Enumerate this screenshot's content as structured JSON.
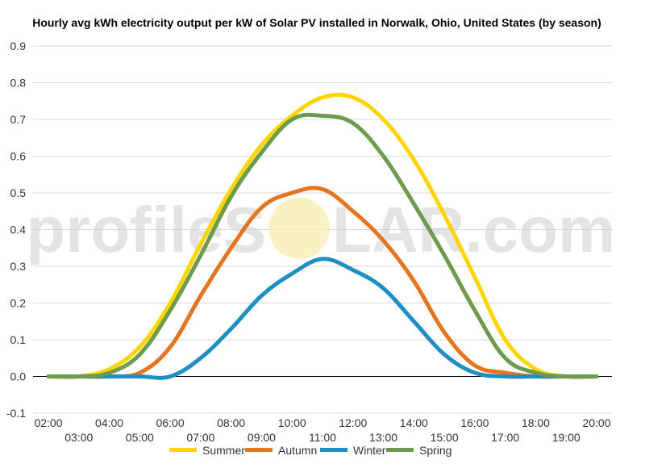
{
  "watermark": {
    "text_left": "profileS",
    "text_right": "LAR.com"
  },
  "colors": {
    "summer": "#FFD500",
    "autumn": "#E5751F",
    "winter": "#1F8FC3",
    "spring": "#6E9A4E",
    "grid": "#d9d9d9",
    "zero_line": "#000000",
    "watermark_text": "#cfcfcf",
    "watermark_sun": "#f7ecb0"
  },
  "chart_data": {
    "type": "line",
    "title": "Hourly avg kWh electricity output per kW of Solar PV installed in Norwalk, Ohio, United States (by season)",
    "xlabel": "",
    "ylabel": "",
    "ylim": [
      -0.1,
      0.9
    ],
    "yticks": [
      "-0.1",
      "0.0",
      "0.1",
      "0.2",
      "0.3",
      "0.4",
      "0.5",
      "0.6",
      "0.7",
      "0.8",
      "0.9"
    ],
    "grid": true,
    "legend_position": "bottom",
    "x": [
      "02:00",
      "03:00",
      "04:00",
      "05:00",
      "06:00",
      "07:00",
      "08:00",
      "09:00",
      "10:00",
      "11:00",
      "12:00",
      "13:00",
      "14:00",
      "15:00",
      "16:00",
      "17:00",
      "18:00",
      "19:00",
      "20:00"
    ],
    "series": [
      {
        "name": "Summer",
        "color": "#FFD500",
        "values": [
          0.0,
          0.0,
          0.02,
          0.08,
          0.2,
          0.36,
          0.51,
          0.63,
          0.71,
          0.76,
          0.76,
          0.7,
          0.59,
          0.44,
          0.27,
          0.1,
          0.02,
          0.0,
          0.0
        ]
      },
      {
        "name": "Autumn",
        "color": "#E5751F",
        "values": [
          0.0,
          0.0,
          0.0,
          0.01,
          0.08,
          0.22,
          0.35,
          0.46,
          0.5,
          0.51,
          0.45,
          0.37,
          0.26,
          0.12,
          0.03,
          0.01,
          0.0,
          0.0,
          0.0
        ]
      },
      {
        "name": "Winter",
        "color": "#1F8FC3",
        "values": [
          0.0,
          0.0,
          0.0,
          0.0,
          0.0,
          0.05,
          0.13,
          0.22,
          0.28,
          0.32,
          0.29,
          0.24,
          0.15,
          0.06,
          0.01,
          0.0,
          0.0,
          0.0,
          0.0
        ]
      },
      {
        "name": "Spring",
        "color": "#6E9A4E",
        "values": [
          0.0,
          0.0,
          0.01,
          0.06,
          0.18,
          0.33,
          0.49,
          0.61,
          0.7,
          0.71,
          0.69,
          0.6,
          0.47,
          0.33,
          0.18,
          0.05,
          0.01,
          0.0,
          0.0
        ]
      }
    ]
  }
}
